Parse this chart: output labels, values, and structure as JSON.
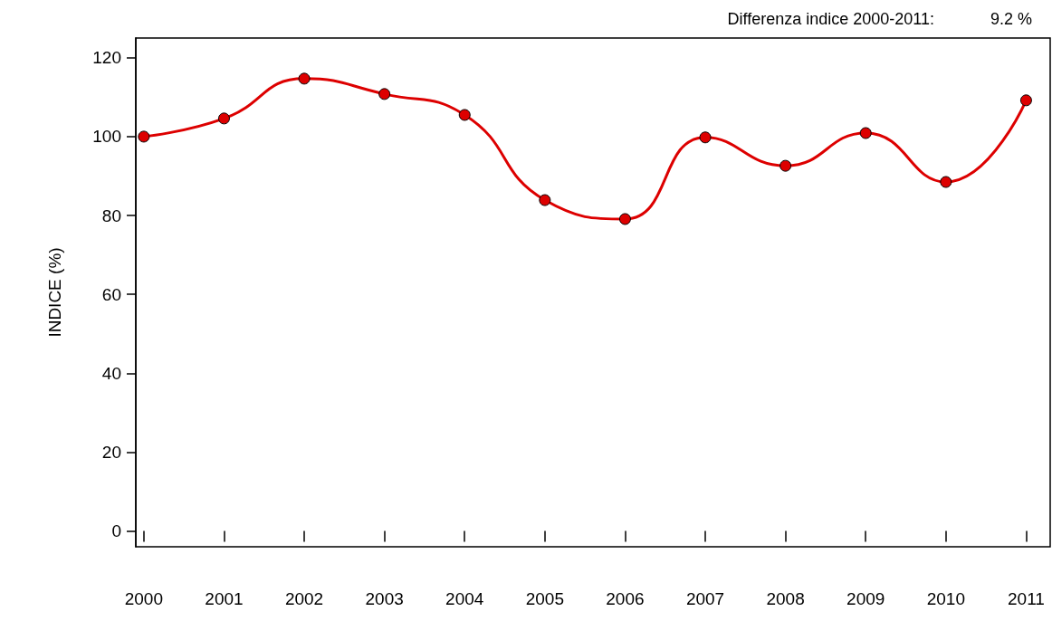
{
  "chart_data": {
    "type": "line",
    "ylabel": "INDICE (%)",
    "annotations": [
      "Differenza indice 2000-2011:",
      "9.2 %"
    ],
    "x": [
      2000,
      2001,
      2002,
      2003,
      2004,
      2005,
      2006,
      2007,
      2008,
      2009,
      2010,
      2011
    ],
    "series": [
      {
        "color": "#dd0000",
        "values": [
          100,
          104.6,
          114.7,
          110.8,
          105.5,
          83.9,
          79.1,
          99.8,
          92.6,
          100.9,
          88.5,
          109.2
        ]
      }
    ],
    "xlim": [
      1999.9,
      2011.3
    ],
    "xticks": [
      2000,
      2001,
      2002,
      2003,
      2004,
      2005,
      2006,
      2007,
      2008,
      2009,
      2010,
      2011
    ],
    "ylim": [
      -4,
      125
    ],
    "yticks": [
      0,
      20,
      40,
      60,
      80,
      100,
      120
    ],
    "marker": "circle",
    "line_style": "solid"
  }
}
